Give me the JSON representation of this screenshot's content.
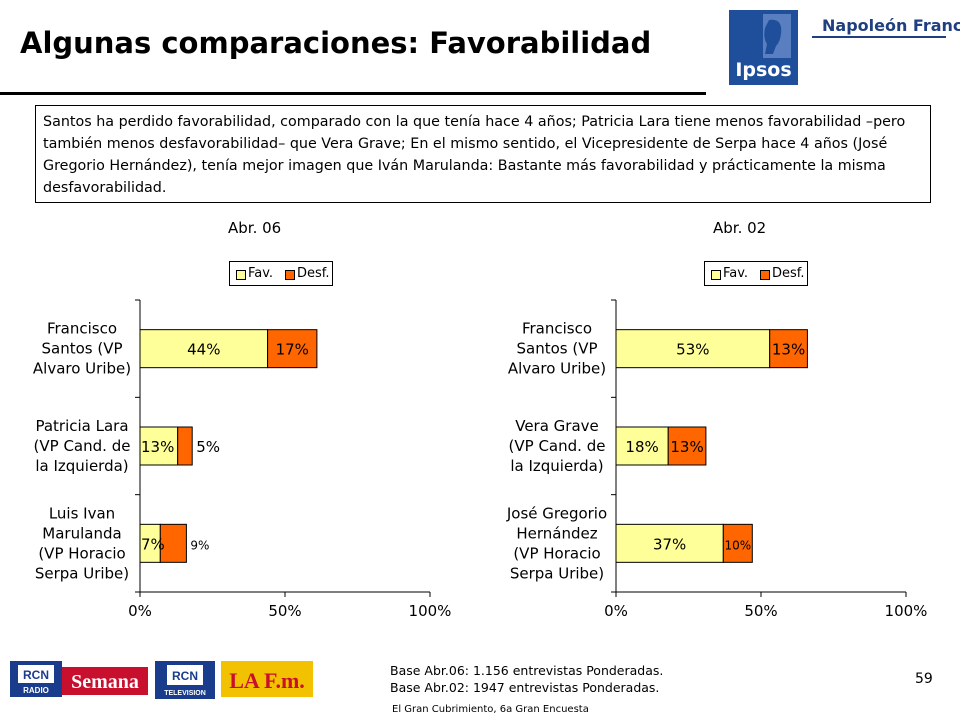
{
  "title": "Algunas comparaciones: Favorabilidad",
  "brand": {
    "ipsos": "Ipsos",
    "napoleon": "Napoleón Franco"
  },
  "summary": "Santos ha perdido favorabilidad, comparado con la que tenía hace 4 años; Patricia Lara tiene menos favorabilidad –pero también menos desfavorabilidad– que  Vera Grave; En el mismo sentido, el Vicepresidente de Serpa hace 4 años (José Gregorio Hernández), tenía mejor imagen que Iván Marulanda: Bastante más favorabilidad y prácticamente la misma desfavorabilidad.",
  "colors": {
    "fav": "#ffff99",
    "desf": "#ff6600"
  },
  "chart_data": [
    {
      "type": "bar",
      "stacked": true,
      "orientation": "horizontal",
      "title": "Abr. 06",
      "legend": {
        "fav": "Fav.",
        "desf": "Desf."
      },
      "categories": [
        [
          "Francisco",
          "Santos (VP",
          "Alvaro Uribe)"
        ],
        [
          "Patricia Lara",
          "(VP Cand. de",
          "la Izquierda)"
        ],
        [
          "Luis Ivan",
          "Marulanda",
          "(VP Horacio",
          "Serpa Uribe)"
        ]
      ],
      "series": [
        {
          "name": "Fav.",
          "values": [
            44,
            13,
            7
          ],
          "labels": [
            "44%",
            "13%",
            "7%"
          ]
        },
        {
          "name": "Desf.",
          "values": [
            17,
            5,
            9
          ],
          "labels": [
            "17%",
            "5%",
            "9%"
          ]
        }
      ],
      "xticks": [
        "0%",
        "50%",
        "100%"
      ],
      "xlim": [
        0,
        100
      ]
    },
    {
      "type": "bar",
      "stacked": true,
      "orientation": "horizontal",
      "title": "Abr. 02",
      "legend": {
        "fav": "Fav.",
        "desf": "Desf."
      },
      "categories": [
        [
          "Francisco",
          "Santos (VP",
          "Alvaro Uribe)"
        ],
        [
          "Vera Grave",
          "(VP Cand. de",
          "la Izquierda)"
        ],
        [
          "José Gregorio",
          "Hernández",
          "(VP Horacio",
          "Serpa Uribe)"
        ]
      ],
      "series": [
        {
          "name": "Fav.",
          "values": [
            53,
            18,
            37
          ],
          "labels": [
            "53%",
            "18%",
            "37%"
          ]
        },
        {
          "name": "Desf.",
          "values": [
            13,
            13,
            10
          ],
          "labels": [
            "13%",
            "13%",
            "10%"
          ]
        }
      ],
      "xticks": [
        "0%",
        "50%",
        "100%"
      ],
      "xlim": [
        0,
        100
      ]
    }
  ],
  "footnote": {
    "line1": "Base Abr.06: 1.156 entrevistas Ponderadas.",
    "line2": "Base Abr.02: 1947 entrevistas Ponderadas."
  },
  "source": "El Gran Cubrimiento, 6a Gran Encuesta",
  "page_number": "59",
  "partner_logos": {
    "rcn_radio": "RADIO",
    "semana": "Semana",
    "rcn_tv": "TELEVISION",
    "lafm": "LA F.m."
  }
}
